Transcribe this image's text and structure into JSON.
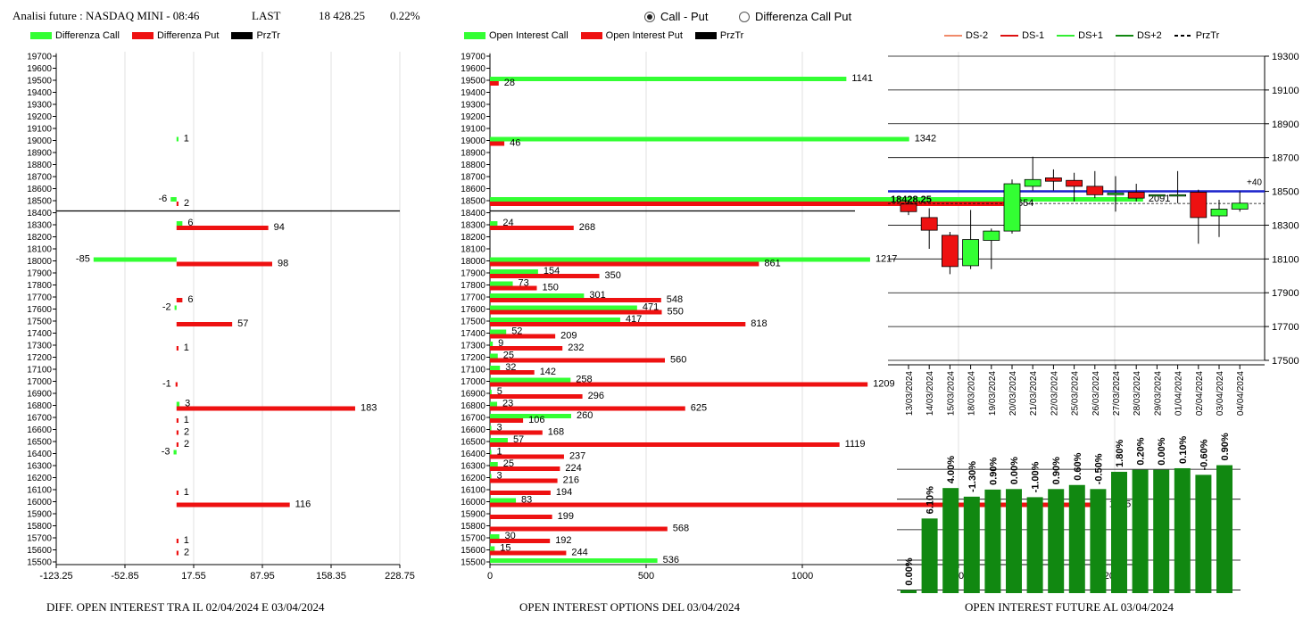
{
  "header": {
    "title": "Analisi future : NASDAQ MINI - 08:46",
    "last_label": "LAST",
    "last_value": "18 428.25",
    "change_pct": "0.22%"
  },
  "radio": {
    "call_put": "Call - Put",
    "diff_call_put": "Differenza Call Put",
    "selected": "call_put"
  },
  "legend_diff": {
    "call": "Differenza Call",
    "put": "Differenza Put",
    "prz": "PrzTr"
  },
  "legend_oi": {
    "call": "Open Interest Call",
    "put": "Open Interest Put",
    "prz": "PrzTr"
  },
  "legend_future": {
    "ds_m2": "DS-2",
    "ds_m1": "DS-1",
    "ds_p1": "DS+1",
    "ds_p2": "DS+2",
    "prz": "PrzTr"
  },
  "captions": {
    "diff": "DIFF. OPEN INTEREST TRA IL 02/04/2024 E 03/04/2024",
    "oi": "OPEN INTEREST OPTIONS DEL 03/04/2024",
    "future": "OPEN INTEREST FUTURE AL 03/04/2024"
  },
  "colors": {
    "call": "#33ff33",
    "put": "#ee1111",
    "prz": "#000000",
    "blue": "#1a22cc",
    "bar_green": "#118811",
    "ds_m2": "#f08a6a",
    "ds_m1": "#dd1111",
    "ds_p1": "#33ee33",
    "ds_p2": "#118811"
  },
  "chart_data": [
    {
      "type": "bar",
      "orientation": "horizontal",
      "strikes": [
        19700,
        19600,
        19500,
        19400,
        19300,
        19200,
        19100,
        19000,
        18900,
        18800,
        18700,
        18600,
        18500,
        18400,
        18300,
        18200,
        18100,
        18000,
        17900,
        17800,
        17700,
        17600,
        17500,
        17400,
        17300,
        17200,
        17100,
        17000,
        16900,
        16800,
        16700,
        16600,
        16500,
        16400,
        16300,
        16200,
        16100,
        16000,
        15900,
        15800,
        15700,
        15600,
        15500
      ],
      "x_ticks": [
        "-123.25",
        "-52.85",
        "17.55",
        "87.95",
        "158.35",
        "228.75"
      ],
      "xlim": [
        -123.25,
        228.75
      ],
      "price_line_strike": 18400,
      "series": [
        {
          "name": "Differenza Call",
          "points": [
            {
              "strike": 19000,
              "value": 1
            },
            {
              "strike": 18500,
              "value": -6
            },
            {
              "strike": 18300,
              "value": 6
            },
            {
              "strike": 18000,
              "value": -85
            },
            {
              "strike": 17600,
              "value": -2
            },
            {
              "strike": 16800,
              "value": 3
            },
            {
              "strike": 16400,
              "value": -3
            }
          ]
        },
        {
          "name": "Differenza Put",
          "points": [
            {
              "strike": 18500,
              "value": 2
            },
            {
              "strike": 18300,
              "value": 94
            },
            {
              "strike": 18000,
              "value": 98
            },
            {
              "strike": 17700,
              "value": 6
            },
            {
              "strike": 17500,
              "value": 57
            },
            {
              "strike": 17300,
              "value": 1
            },
            {
              "strike": 17000,
              "value": -1
            },
            {
              "strike": 16800,
              "value": 183
            },
            {
              "strike": 16700,
              "value": 1
            },
            {
              "strike": 16600,
              "value": 2
            },
            {
              "strike": 16500,
              "value": 2
            },
            {
              "strike": 16100,
              "value": 1
            },
            {
              "strike": 16000,
              "value": 116
            },
            {
              "strike": 15700,
              "value": 1
            },
            {
              "strike": 15600,
              "value": 2
            }
          ]
        }
      ]
    },
    {
      "type": "bar",
      "orientation": "horizontal",
      "strikes": [
        19700,
        19600,
        19500,
        19400,
        19300,
        19200,
        19100,
        19000,
        18900,
        18800,
        18700,
        18600,
        18500,
        18400,
        18300,
        18200,
        18100,
        18000,
        17900,
        17800,
        17700,
        17600,
        17500,
        17400,
        17300,
        17200,
        17100,
        17000,
        16900,
        16800,
        16700,
        16600,
        16500,
        16400,
        16300,
        16200,
        16100,
        16000,
        15900,
        15800,
        15700,
        15600,
        15500
      ],
      "x_ticks": [
        "0",
        "500",
        "1000",
        "1500",
        "2000"
      ],
      "xlim": [
        0,
        2100
      ],
      "series": [
        {
          "name": "Open Interest Call",
          "points": [
            {
              "strike": 19500,
              "value": 1141
            },
            {
              "strike": 19000,
              "value": 1342
            },
            {
              "strike": 18500,
              "value": 2091
            },
            {
              "strike": 18300,
              "value": 24
            },
            {
              "strike": 18000,
              "value": 1217
            },
            {
              "strike": 17900,
              "value": 154
            },
            {
              "strike": 17800,
              "value": 73
            },
            {
              "strike": 17700,
              "value": 301
            },
            {
              "strike": 17600,
              "value": 471
            },
            {
              "strike": 17500,
              "value": 417
            },
            {
              "strike": 17400,
              "value": 52
            },
            {
              "strike": 17300,
              "value": 9
            },
            {
              "strike": 17200,
              "value": 25
            },
            {
              "strike": 17100,
              "value": 32
            },
            {
              "strike": 17000,
              "value": 258
            },
            {
              "strike": 16900,
              "value": 5
            },
            {
              "strike": 16800,
              "value": 23
            },
            {
              "strike": 16700,
              "value": 260
            },
            {
              "strike": 16600,
              "value": 3
            },
            {
              "strike": 16500,
              "value": 57
            },
            {
              "strike": 16400,
              "value": 1
            },
            {
              "strike": 16300,
              "value": 25
            },
            {
              "strike": 16200,
              "value": 3
            },
            {
              "strike": 16000,
              "value": 83
            },
            {
              "strike": 15700,
              "value": 30
            },
            {
              "strike": 15600,
              "value": 15
            },
            {
              "strike": 15500,
              "value": 536
            }
          ]
        },
        {
          "name": "Open Interest Put",
          "points": [
            {
              "strike": 19500,
              "value": 28
            },
            {
              "strike": 19000,
              "value": 46
            },
            {
              "strike": 18500,
              "value": 1654
            },
            {
              "strike": 18300,
              "value": 268
            },
            {
              "strike": 18000,
              "value": 861
            },
            {
              "strike": 17900,
              "value": 350
            },
            {
              "strike": 17800,
              "value": 150
            },
            {
              "strike": 17700,
              "value": 548
            },
            {
              "strike": 17600,
              "value": 550
            },
            {
              "strike": 17500,
              "value": 818
            },
            {
              "strike": 17400,
              "value": 209
            },
            {
              "strike": 17300,
              "value": 232
            },
            {
              "strike": 17200,
              "value": 560
            },
            {
              "strike": 17100,
              "value": 142
            },
            {
              "strike": 17000,
              "value": 1209
            },
            {
              "strike": 16900,
              "value": 296
            },
            {
              "strike": 16800,
              "value": 625
            },
            {
              "strike": 16700,
              "value": 106
            },
            {
              "strike": 16600,
              "value": 168
            },
            {
              "strike": 16500,
              "value": 1119
            },
            {
              "strike": 16400,
              "value": 237
            },
            {
              "strike": 16300,
              "value": 224
            },
            {
              "strike": 16200,
              "value": 216
            },
            {
              "strike": 16100,
              "value": 194
            },
            {
              "strike": 16000,
              "value": 1965
            },
            {
              "strike": 15900,
              "value": 199
            },
            {
              "strike": 15800,
              "value": 568
            },
            {
              "strike": 15700,
              "value": 192
            },
            {
              "strike": 15600,
              "value": 244
            }
          ]
        }
      ]
    },
    {
      "type": "candlestick",
      "dates": [
        "13/03/2024",
        "14/03/2024",
        "15/03/2024",
        "18/03/2024",
        "19/03/2024",
        "20/03/2024",
        "21/03/2024",
        "22/03/2024",
        "25/03/2024",
        "26/03/2024",
        "27/03/2024",
        "28/03/2024",
        "29/03/2024",
        "01/04/2024",
        "02/04/2024",
        "03/04/2024",
        "04/04/2024"
      ],
      "y_ticks": [
        19300,
        19100,
        18900,
        18700,
        18500,
        18300,
        18100,
        17900,
        17700,
        17500
      ],
      "ylim": [
        17500,
        19300
      ],
      "last_price_label": "18428.25",
      "level_line": 18500,
      "level_label": "+40",
      "ohlc": [
        {
          "o": 18425,
          "h": 18450,
          "l": 18360,
          "c": 18380
        },
        {
          "o": 18345,
          "h": 18400,
          "l": 18160,
          "c": 18270
        },
        {
          "o": 18240,
          "h": 18260,
          "l": 18010,
          "c": 18055
        },
        {
          "o": 18060,
          "h": 18390,
          "l": 18040,
          "c": 18215
        },
        {
          "o": 18210,
          "h": 18280,
          "l": 18040,
          "c": 18265
        },
        {
          "o": 18265,
          "h": 18570,
          "l": 18250,
          "c": 18545
        },
        {
          "o": 18530,
          "h": 18705,
          "l": 18505,
          "c": 18570
        },
        {
          "o": 18580,
          "h": 18630,
          "l": 18505,
          "c": 18560
        },
        {
          "o": 18565,
          "h": 18610,
          "l": 18440,
          "c": 18530
        },
        {
          "o": 18530,
          "h": 18620,
          "l": 18460,
          "c": 18480
        },
        {
          "o": 18480,
          "h": 18590,
          "l": 18380,
          "c": 18490
        },
        {
          "o": 18495,
          "h": 18545,
          "l": 18440,
          "c": 18460
        },
        {
          "o": 18480,
          "h": 18480,
          "l": 18470,
          "c": 18480
        },
        {
          "o": 18480,
          "h": 18620,
          "l": 18430,
          "c": 18480
        },
        {
          "o": 18495,
          "h": 18510,
          "l": 18190,
          "c": 18345
        },
        {
          "o": 18355,
          "h": 18450,
          "l": 18230,
          "c": 18395
        },
        {
          "o": 18395,
          "h": 18500,
          "l": 18380,
          "c": 18430
        }
      ]
    },
    {
      "type": "bar",
      "labels": [
        "0.00%",
        "6.10%",
        "4.00%",
        "-1.30%",
        "0.90%",
        "0.00%",
        "-1.00%",
        "0.90%",
        "0.60%",
        "-0.50%",
        "1.80%",
        "0.20%",
        "0.00%",
        "0.10%",
        "-0.60%",
        "0.90%"
      ],
      "values": [
        0.3,
        7.35,
        10.35,
        9.5,
        10.2,
        10.25,
        9.45,
        10.25,
        10.65,
        10.25,
        11.95,
        12.15,
        12.15,
        12.3,
        11.65,
        12.6
      ],
      "ylim": [
        0,
        13
      ]
    }
  ]
}
